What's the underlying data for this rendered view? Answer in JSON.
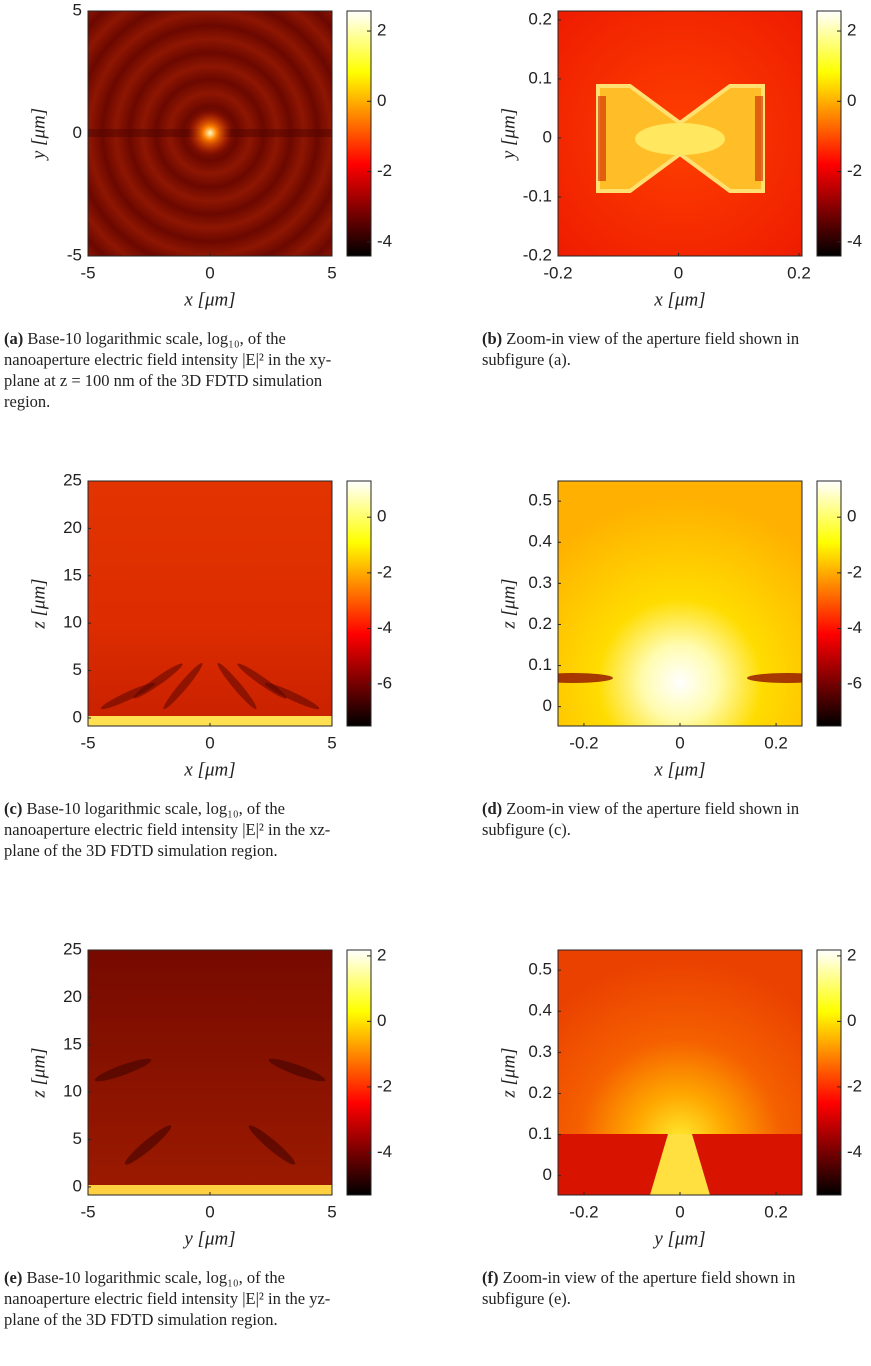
{
  "figures": [
    {
      "label": "(a)",
      "caption": "Base-10 logarithmic scale, log₁₀, of the nanoaperture electric field intensity |E|² in the xy-plane at z = 100 nm of the 3D FDTD simulation region.",
      "xlabel": "x [μm]",
      "ylabel": "y [μm]",
      "xlim": [
        -5,
        5
      ],
      "ylim": [
        -5,
        5
      ],
      "xticks": [
        -5,
        0,
        5
      ],
      "yticks": [
        -5,
        0,
        5
      ],
      "clim": [
        -4.4,
        2.57
      ],
      "cticks": [
        -4,
        -2,
        0,
        2
      ]
    },
    {
      "label": "(b)",
      "caption": "Zoom-in view of the aperture field shown in subfigure (a).",
      "xlabel": "x [μm]",
      "ylabel": "y [μm]",
      "xlim": [
        -0.2,
        0.205
      ],
      "ylim": [
        -0.2,
        0.215
      ],
      "xticks": [
        -0.2,
        0,
        0.2
      ],
      "yticks": [
        -0.2,
        -0.1,
        0,
        0.1,
        0.2
      ],
      "clim": [
        -4.4,
        2.57
      ],
      "cticks": [
        -4,
        -2,
        0,
        2
      ]
    },
    {
      "label": "(c)",
      "caption": "Base-10 logarithmic scale, log₁₀, of the nanoaperture electric field intensity |E|² in the xz-plane of the 3D FDTD simulation region.",
      "xlabel": "x [μm]",
      "ylabel": "z [μm]",
      "xlim": [
        -5,
        5
      ],
      "ylim": [
        -0.85,
        25
      ],
      "xticks": [
        -5,
        0,
        5
      ],
      "yticks": [
        0,
        5,
        10,
        15,
        20,
        25
      ],
      "clim": [
        -7.5,
        1.3
      ],
      "cticks": [
        -6,
        -4,
        -2,
        0
      ]
    },
    {
      "label": "(d)",
      "caption": "Zoom-in view of the aperture field shown in subfigure (c).",
      "xlabel": "x [μm]",
      "ylabel": "z [μm]",
      "xlim": [
        -0.254,
        0.254
      ],
      "ylim": [
        -0.047,
        0.549
      ],
      "xticks": [
        -0.2,
        0,
        0.2
      ],
      "yticks": [
        0,
        0.1,
        0.2,
        0.3,
        0.4,
        0.5
      ],
      "clim": [
        -7.5,
        1.3
      ],
      "cticks": [
        -6,
        -4,
        -2,
        0
      ]
    },
    {
      "label": "(e)",
      "caption": "Base-10 logarithmic scale, log₁₀, of the nanoaperture electric field intensity |E|² in the yz-plane of the 3D FDTD simulation region.",
      "xlabel": "y [μm]",
      "ylabel": "z [μm]",
      "xlim": [
        -5,
        5
      ],
      "ylim": [
        -0.85,
        25
      ],
      "xticks": [
        -5,
        0,
        5
      ],
      "yticks": [
        0,
        5,
        10,
        15,
        20,
        25
      ],
      "clim": [
        -5.3,
        2.18
      ],
      "cticks": [
        -4,
        -2,
        0,
        2
      ]
    },
    {
      "label": "(f)",
      "caption": "Zoom-in view of the aperture field shown in subfigure (e).",
      "xlabel": "y [μm]",
      "ylabel": "z [μm]",
      "xlim": [
        -0.254,
        0.254
      ],
      "ylim": [
        -0.047,
        0.549
      ],
      "xticks": [
        -0.2,
        0,
        0.2
      ],
      "yticks": [
        0,
        0.1,
        0.2,
        0.3,
        0.4,
        0.5
      ],
      "clim": [
        -5.3,
        2.18
      ],
      "cticks": [
        -4,
        -2,
        0,
        2
      ]
    }
  ]
}
